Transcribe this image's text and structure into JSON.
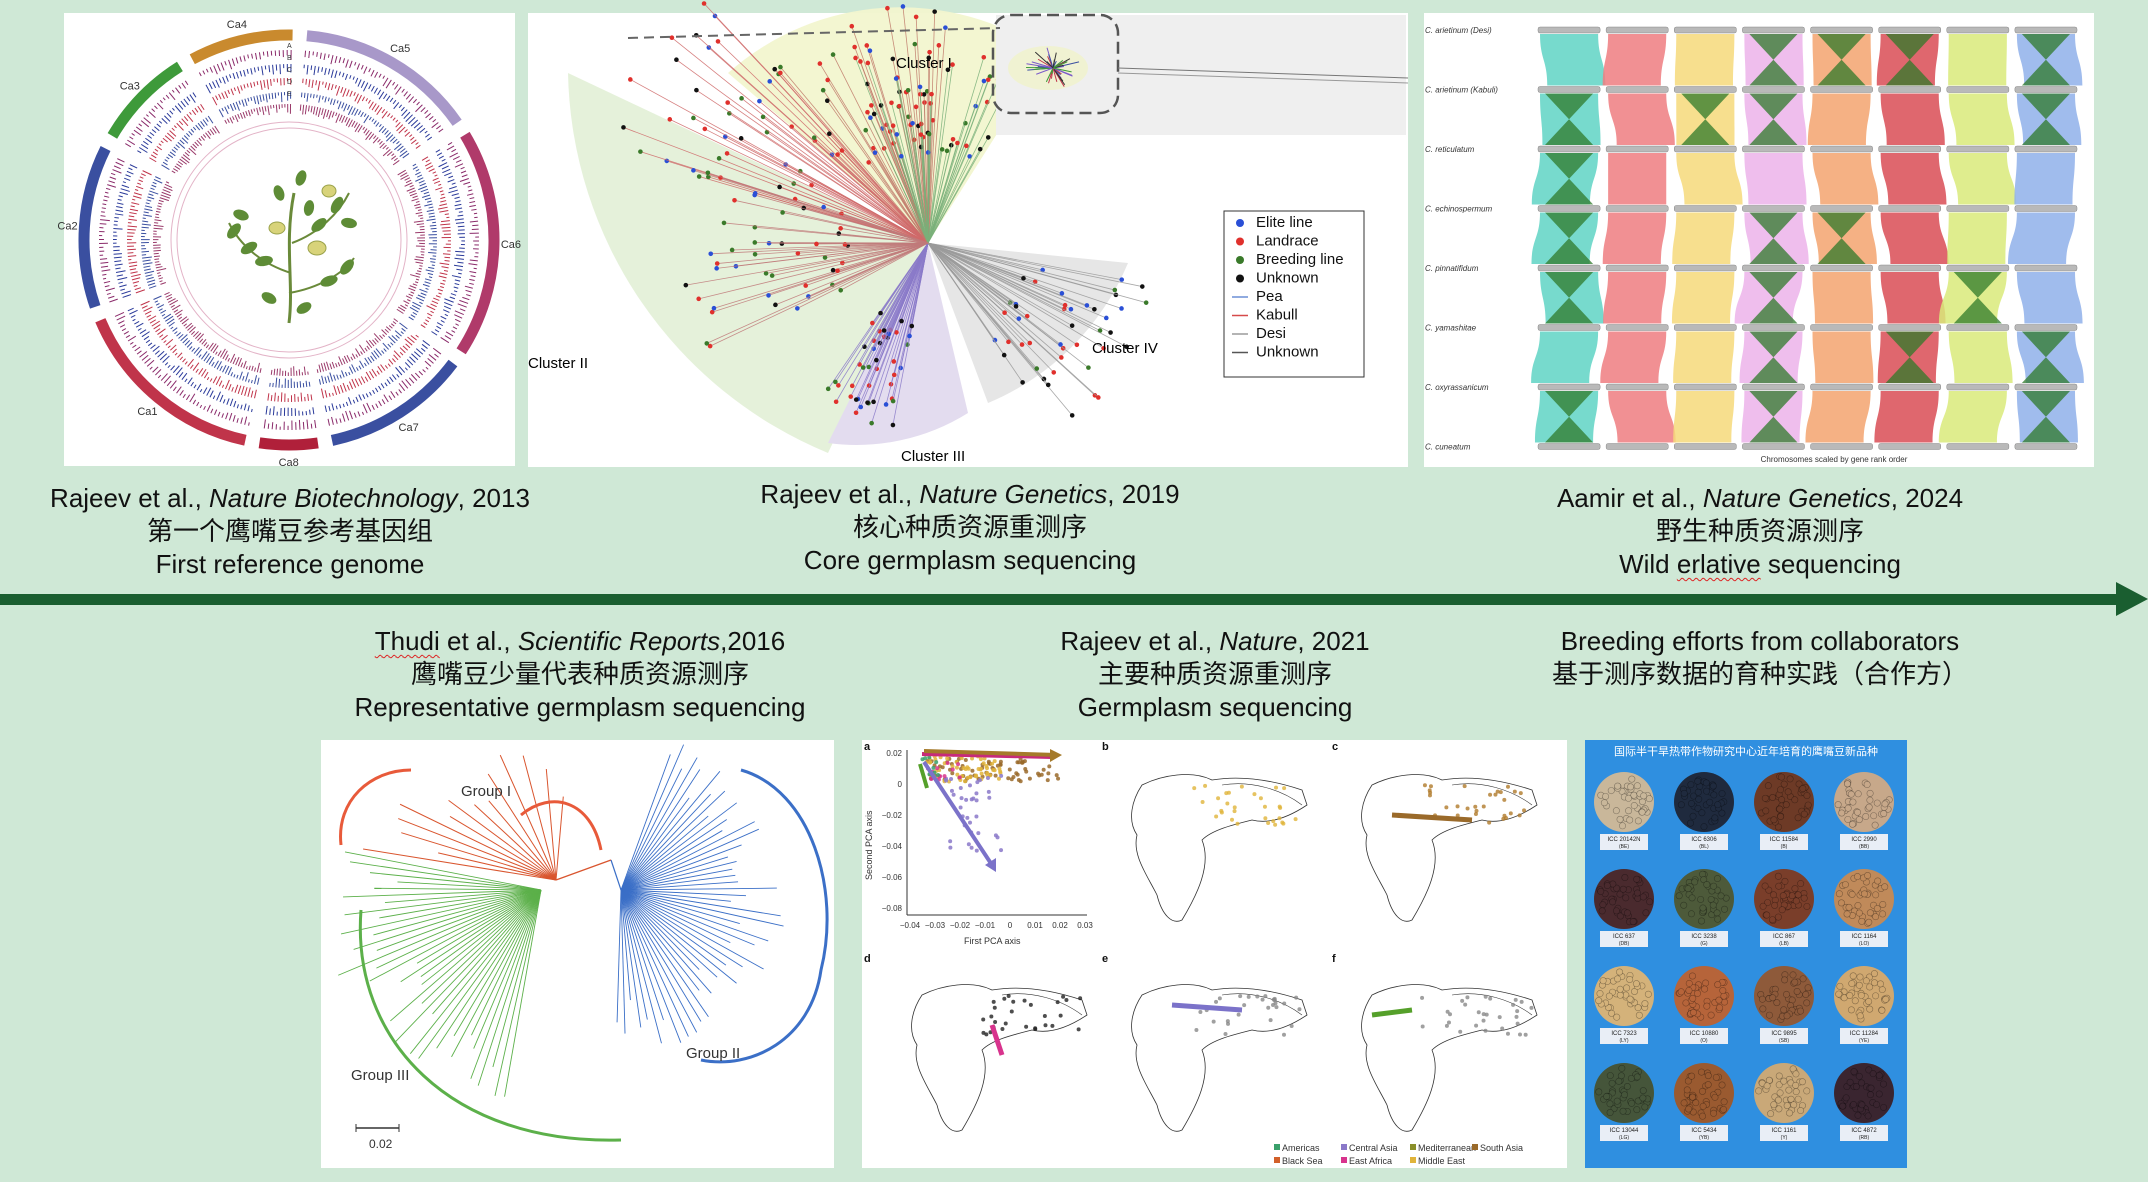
{
  "captions": {
    "c1": {
      "authors": "Rajeev et al., ",
      "journal": "Nature Biotechnology",
      "year": ", 2013",
      "zh": "第一个鹰嘴豆参考基因组",
      "en": "First reference genome"
    },
    "c2": {
      "authors": "Rajeev et al., ",
      "journal": "Nature Genetics",
      "year": ", 2019",
      "zh": "核心种质资源重测序",
      "en": "Core germplasm sequencing"
    },
    "c3": {
      "authors": "Aamir et al., ",
      "journal": "Nature Genetics",
      "year": ", 2024",
      "zh": "野生种质资源测序",
      "en_a": "Wild ",
      "en_b": "erlative",
      "en_c": " sequencing"
    },
    "c4": {
      "authors_a": "Thudi",
      "authors_b": " et al., ",
      "journal": "Scientific Reports",
      "year": ",2016",
      "zh": "鹰嘴豆少量代表种质资源测序",
      "en": "Representative  germplasm sequencing"
    },
    "c5": {
      "authors": "Rajeev et al., ",
      "journal": "Nature",
      "year": ", 2021",
      "zh": "主要种质资源重测序",
      "en": "Germplasm sequencing"
    },
    "c6": {
      "en": "Breeding efforts from collaborators",
      "zh": "基于测序数据的育种实践（合作方）"
    }
  },
  "circos": {
    "chromosomes": [
      "Ca1",
      "Ca2",
      "Ca3",
      "Ca4",
      "Ca5",
      "Ca6",
      "Ca7",
      "Ca8"
    ],
    "track_letters": [
      "A",
      "B",
      "C",
      "D",
      "E"
    ]
  },
  "tree2019": {
    "clusters": [
      "Cluster I",
      "Cluster II",
      "Cluster III",
      "Cluster IV"
    ],
    "legend": [
      {
        "label": "Elite line",
        "color": "#2a4fd6",
        "kind": "dot"
      },
      {
        "label": "Landrace",
        "color": "#e0302c",
        "kind": "dot"
      },
      {
        "label": "Breeding line",
        "color": "#3a7a2a",
        "kind": "dot"
      },
      {
        "label": "Unknown",
        "color": "#111111",
        "kind": "dot"
      },
      {
        "label": "Pea",
        "color": "#6b8fd6",
        "kind": "line"
      },
      {
        "label": "Kabull",
        "color": "#d64a4a",
        "kind": "line"
      },
      {
        "label": "Desi",
        "color": "#9a9a9a",
        "kind": "line"
      },
      {
        "label": "Unknown",
        "color": "#555555",
        "kind": "line"
      }
    ]
  },
  "synteny": {
    "species": [
      "C. arietinum (Desi)",
      "C. arietinum (Kabuli)",
      "C. reticulatum",
      "C. echinospermum",
      "C. pinnatifidum",
      "C. yamashitae",
      "C. oxyrassanicum",
      "C. cuneatum"
    ],
    "footer": "Chromosomes scaled by gene rank order",
    "colors": [
      "#5fd3c4",
      "#ef7c80",
      "#f6d97a",
      "#ecb3ea",
      "#f3a36f",
      "#d94c55",
      "#d9ea7a",
      "#8fb0ea"
    ]
  },
  "tree2016": {
    "groups": [
      "Group I",
      "Group II",
      "Group III"
    ],
    "scale": "0.02",
    "group_colors": {
      "g1": "#d9552e",
      "g2": "#3b6fc7",
      "g3": "#5cb04a"
    }
  },
  "pca2021": {
    "panel_letters": [
      "a",
      "b",
      "c",
      "d",
      "e",
      "f"
    ],
    "x_label": "First PCA axis",
    "y_label": "Second PCA axis",
    "x_ticks": [
      "−0.04",
      "−0.03",
      "−0.02",
      "−0.01",
      "0",
      "0.01",
      "0.02",
      "0.03"
    ],
    "y_ticks": [
      "0.02",
      "0",
      "−0.02",
      "−0.04",
      "−0.06",
      "−0.08"
    ],
    "legend": [
      {
        "label": "Americas",
        "color": "#3aa06b"
      },
      {
        "label": "Central Asia",
        "color": "#8a78c9"
      },
      {
        "label": "Mediterranean",
        "color": "#8a8f2a"
      },
      {
        "label": "South Asia",
        "color": "#9a6a2a"
      },
      {
        "label": "Black Sea",
        "color": "#d2602a"
      },
      {
        "label": "East Africa",
        "color": "#d8338d"
      },
      {
        "label": "Middle East",
        "color": "#e0b43a"
      }
    ]
  },
  "varieties": {
    "title": "国际半干旱热带作物研究中心近年培育的鹰嘴豆新品种",
    "items": [
      {
        "name": "ICC 20142N",
        "code": "(BE)",
        "color": "#c9b79a"
      },
      {
        "name": "ICC 6306",
        "code": "(BL)",
        "color": "#1f2a3e"
      },
      {
        "name": "ICC 11584",
        "code": "(B)",
        "color": "#6d3a26"
      },
      {
        "name": "ICC 2990",
        "code": "(BB)",
        "color": "#c7a88a"
      },
      {
        "name": "ICC 637",
        "code": "(DB)",
        "color": "#4a2a2e"
      },
      {
        "name": "ICC 3238",
        "code": "(G)",
        "color": "#4d5a3a"
      },
      {
        "name": "ICC 867",
        "code": "(LB)",
        "color": "#7a3e2a"
      },
      {
        "name": "ICC 1164",
        "code": "(LO)",
        "color": "#c08a5a"
      },
      {
        "name": "ICC 7323",
        "code": "(LY)",
        "color": "#d4b27a"
      },
      {
        "name": "ICC 10880",
        "code": "(O)",
        "color": "#b6643a"
      },
      {
        "name": "ICC 9895",
        "code": "(SB)",
        "color": "#8e5a3a"
      },
      {
        "name": "ICC 11284",
        "code": "(YE)",
        "color": "#d0a870"
      },
      {
        "name": "ICC 13044",
        "code": "(LG)",
        "color": "#45553a"
      },
      {
        "name": "ICC 5434",
        "code": "(YB)",
        "color": "#9a5a30"
      },
      {
        "name": "ICC 1161",
        "code": "(Y)",
        "color": "#c9a878"
      },
      {
        "name": "ICC 4872",
        "code": "(RB)",
        "color": "#3a2530"
      }
    ]
  }
}
